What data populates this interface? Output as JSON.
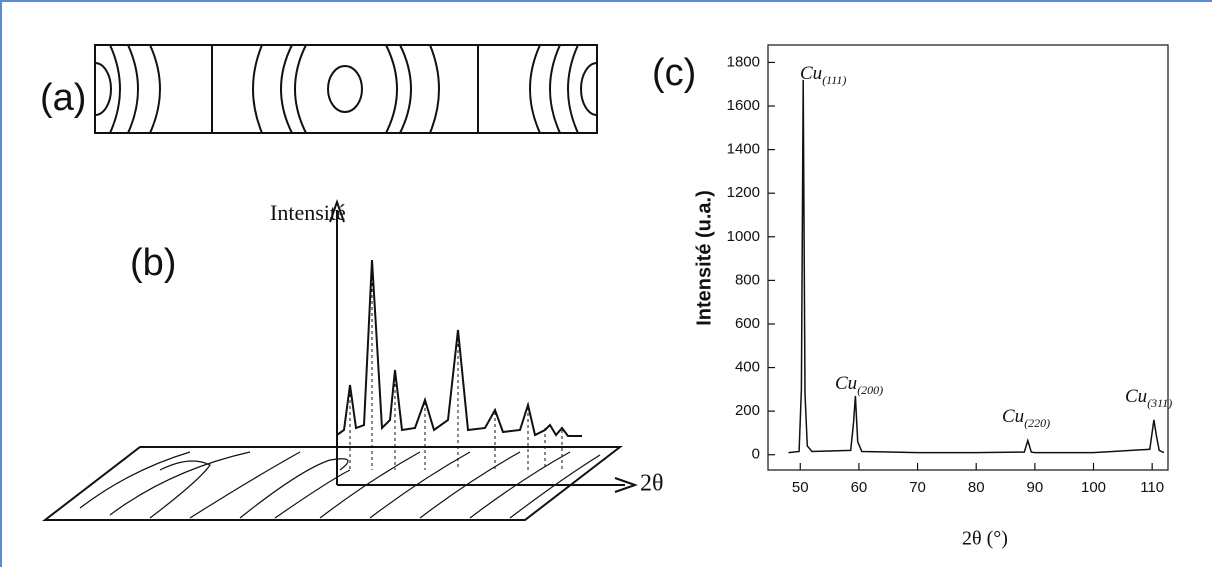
{
  "diagram": {
    "panel_a": "(a)",
    "panel_b": "(b)",
    "y_label": "Intensité",
    "x_label": "2θ"
  },
  "chart_data": {
    "type": "line",
    "panel": "(c)",
    "x_label": "2θ (°)",
    "y_label": "Intensité (u.a.)",
    "x": [
      48,
      49.8,
      50.2,
      50.5,
      50.8,
      51.2,
      52,
      58.6,
      59.1,
      59.4,
      59.8,
      60.5,
      70,
      80,
      88.2,
      88.8,
      89.4,
      90,
      100,
      109.6,
      110.3,
      110.7,
      111.2,
      112
    ],
    "values": [
      10,
      15,
      300,
      1720,
      280,
      40,
      15,
      20,
      150,
      270,
      60,
      15,
      10,
      10,
      12,
      65,
      12,
      10,
      10,
      25,
      160,
      90,
      20,
      10
    ],
    "color": "#111111",
    "xlim": [
      44.5,
      112.7
    ],
    "xticks": [
      50,
      60,
      70,
      80,
      90,
      100,
      110
    ],
    "ylim": [
      -70,
      1880
    ],
    "yticks": [
      0,
      200,
      400,
      600,
      800,
      1000,
      1200,
      1400,
      1600,
      1800
    ],
    "grid": false,
    "annotations": [
      {
        "text": "Cu",
        "sub": "(111)"
      },
      {
        "text": "Cu",
        "sub": "(200)"
      },
      {
        "text": "Cu",
        "sub": "(220)"
      },
      {
        "text": "Cu",
        "sub": "(311)"
      }
    ]
  }
}
